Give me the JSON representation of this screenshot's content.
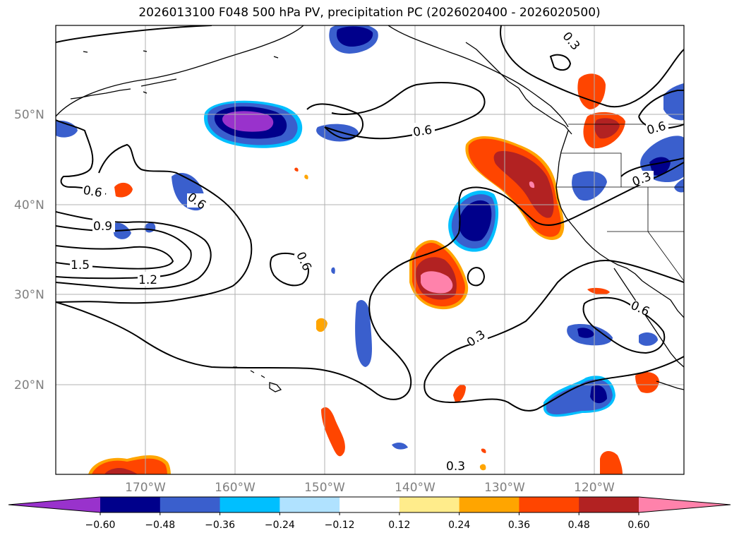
{
  "title": "2026013100 F048 500 hPa PV, precipitation PC (2026020400 - 2026020500)",
  "latitude_labels": [
    "50°N",
    "40°N",
    "30°N",
    "20°N"
  ],
  "longitude_labels": [
    "170°W",
    "160°W",
    "150°W",
    "140°W",
    "130°W",
    "120°W"
  ],
  "contour_labels": [
    "0.3",
    "0.6",
    "0.6",
    "0.6",
    "0.6",
    "0.6",
    "0.9",
    "1.5",
    "1.2",
    "0.6",
    "0.3",
    "0.6",
    "0.3",
    "0.3",
    "0.6"
  ],
  "colorbar": {
    "tick_labels": [
      "−0.60",
      "−0.48",
      "−0.36",
      "−0.24",
      "−0.12",
      "0.12",
      "0.24",
      "0.36",
      "0.48",
      "0.60"
    ],
    "colors": [
      "#9932cc",
      "#00008b",
      "#3a5fcd",
      "#00bfff",
      "#b0e2ff",
      "#ffffff",
      "#ffec8b",
      "#ffa500",
      "#ff4500",
      "#b22222",
      "#ff82ab"
    ]
  },
  "map_colors": {
    "ocean": "#ffffff",
    "coast": "#000000",
    "grid": "#b0b0b0"
  }
}
